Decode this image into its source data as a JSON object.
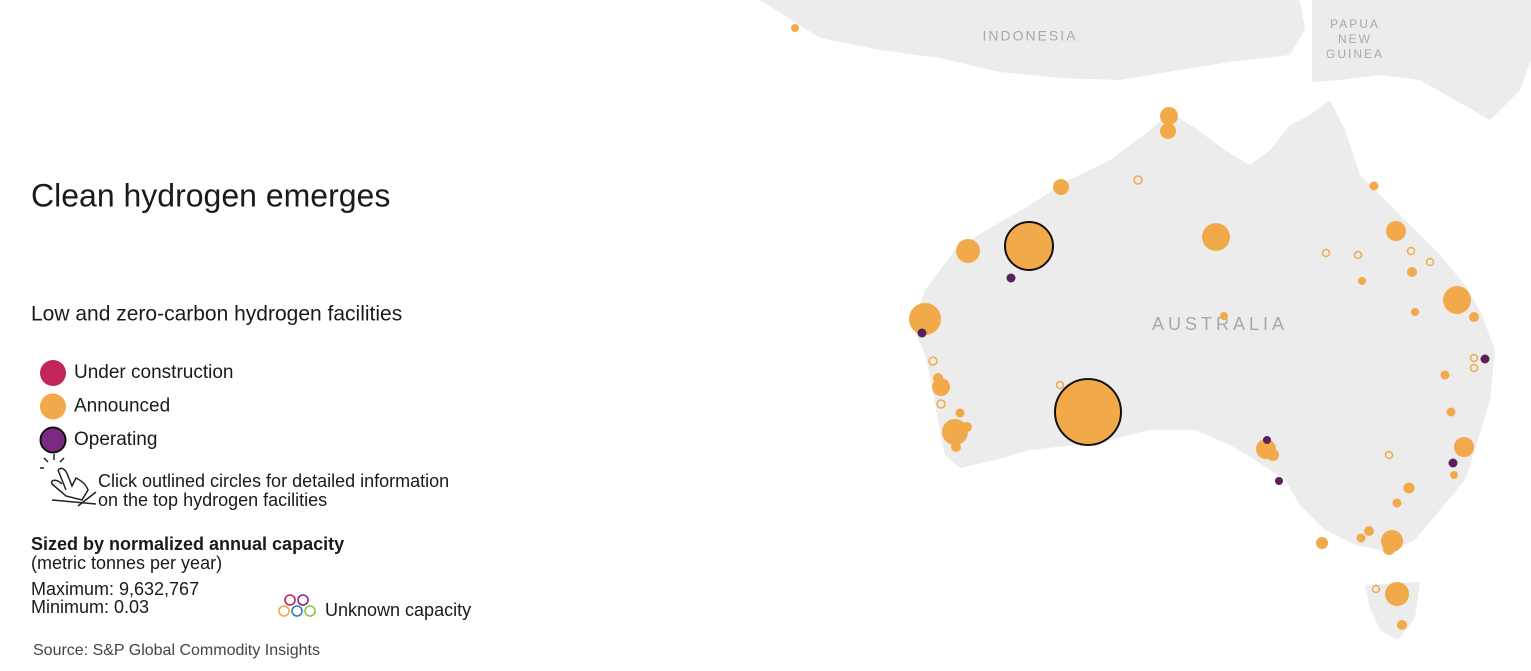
{
  "title": "Clean hydrogen emerges",
  "legend": {
    "title": "Low and zero-carbon hydrogen facilities",
    "items": [
      {
        "label": "Under construction",
        "color": "#c2255c"
      },
      {
        "label": "Announced",
        "color": "#f2a94a"
      },
      {
        "label": "Operating",
        "color": "#7b2a83"
      }
    ],
    "hint": [
      "Click outlined circles for detailed information",
      "on the top hydrogen facilities"
    ]
  },
  "size_legend": {
    "title": "Sized by normalized annual capacity",
    "units": "(metric tonnes per year)",
    "maximum": "Maximum: 9,632,767",
    "minimum": "Minimum: 0.03",
    "unknown": "Unknown capacity"
  },
  "map": {
    "labels": {
      "indonesia": "INDONESIA",
      "papua_new_guinea": [
        "PAPUA",
        "NEW",
        "GUINEA"
      ],
      "australia": "AUSTRALIA"
    }
  },
  "source": "Source: S&P Global Commodity Insights"
}
